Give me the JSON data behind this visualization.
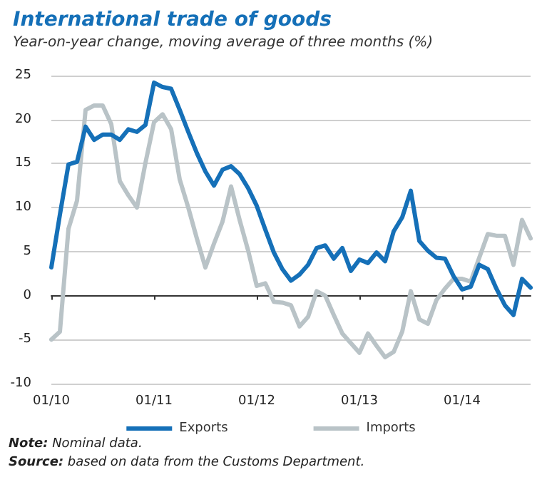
{
  "chart_data": {
    "type": "line",
    "title": "International trade of goods",
    "subtitle": "Year-on-year change, moving average of three months (%)",
    "categories": [
      "01/10",
      null,
      null,
      null,
      null,
      null,
      null,
      null,
      null,
      null,
      null,
      null,
      "01/11",
      null,
      null,
      null,
      null,
      null,
      null,
      null,
      null,
      null,
      null,
      null,
      "01/12",
      null,
      null,
      null,
      null,
      null,
      null,
      null,
      null,
      null,
      null,
      null,
      "01/13",
      null,
      null,
      null,
      null,
      null,
      null,
      null,
      null,
      null,
      null,
      null,
      "01/14",
      null,
      null,
      null,
      null,
      null,
      null,
      null,
      null
    ],
    "series": [
      {
        "name": "Exports",
        "color": "#1570b8",
        "values": [
          3.2,
          9.2,
          14.9,
          15.2,
          19.2,
          17.7,
          18.3,
          18.3,
          17.7,
          18.9,
          18.6,
          19.4,
          24.2,
          23.7,
          23.5,
          21.1,
          18.6,
          16.2,
          14.1,
          12.5,
          14.3,
          14.7,
          13.8,
          12.2,
          10.2,
          7.5,
          4.9,
          3.0,
          1.7,
          2.4,
          3.5,
          5.4,
          5.7,
          4.2,
          5.4,
          2.8,
          4.1,
          3.7,
          4.9,
          3.9,
          7.3,
          8.9,
          11.9,
          6.2,
          5.1,
          4.3,
          4.2,
          2.2,
          0.7,
          1.0,
          3.5,
          3.0,
          0.8,
          -1.1,
          -2.2,
          1.9,
          0.9
        ]
      },
      {
        "name": "Imports",
        "color": "#b9c3c7",
        "values": [
          -5.0,
          -4.1,
          7.6,
          10.8,
          21.1,
          21.6,
          21.6,
          19.5,
          13.0,
          11.4,
          10.0,
          15.1,
          19.7,
          20.6,
          18.9,
          13.2,
          10.0,
          6.5,
          3.2,
          5.9,
          8.4,
          12.4,
          8.6,
          5.1,
          1.1,
          1.4,
          -0.7,
          -0.8,
          -1.1,
          -3.5,
          -2.4,
          0.5,
          0.0,
          -2.2,
          -4.3,
          -5.4,
          -6.5,
          -4.3,
          -5.7,
          -7.0,
          -6.4,
          -4.1,
          0.5,
          -2.7,
          -3.2,
          -0.5,
          0.8,
          1.9,
          1.9,
          1.6,
          4.3,
          7.0,
          6.8,
          6.8,
          3.5,
          8.6,
          6.5
        ]
      }
    ],
    "ylim": [
      -10,
      25
    ],
    "yticks": [
      -10,
      -5,
      0,
      5,
      10,
      15,
      20,
      25
    ],
    "grid": "y",
    "legend": "bottom",
    "marker": "none",
    "line_style": "solid",
    "annotations": [
      "Note: Nominal data.",
      "Source: based on data from the Customs Department."
    ]
  }
}
